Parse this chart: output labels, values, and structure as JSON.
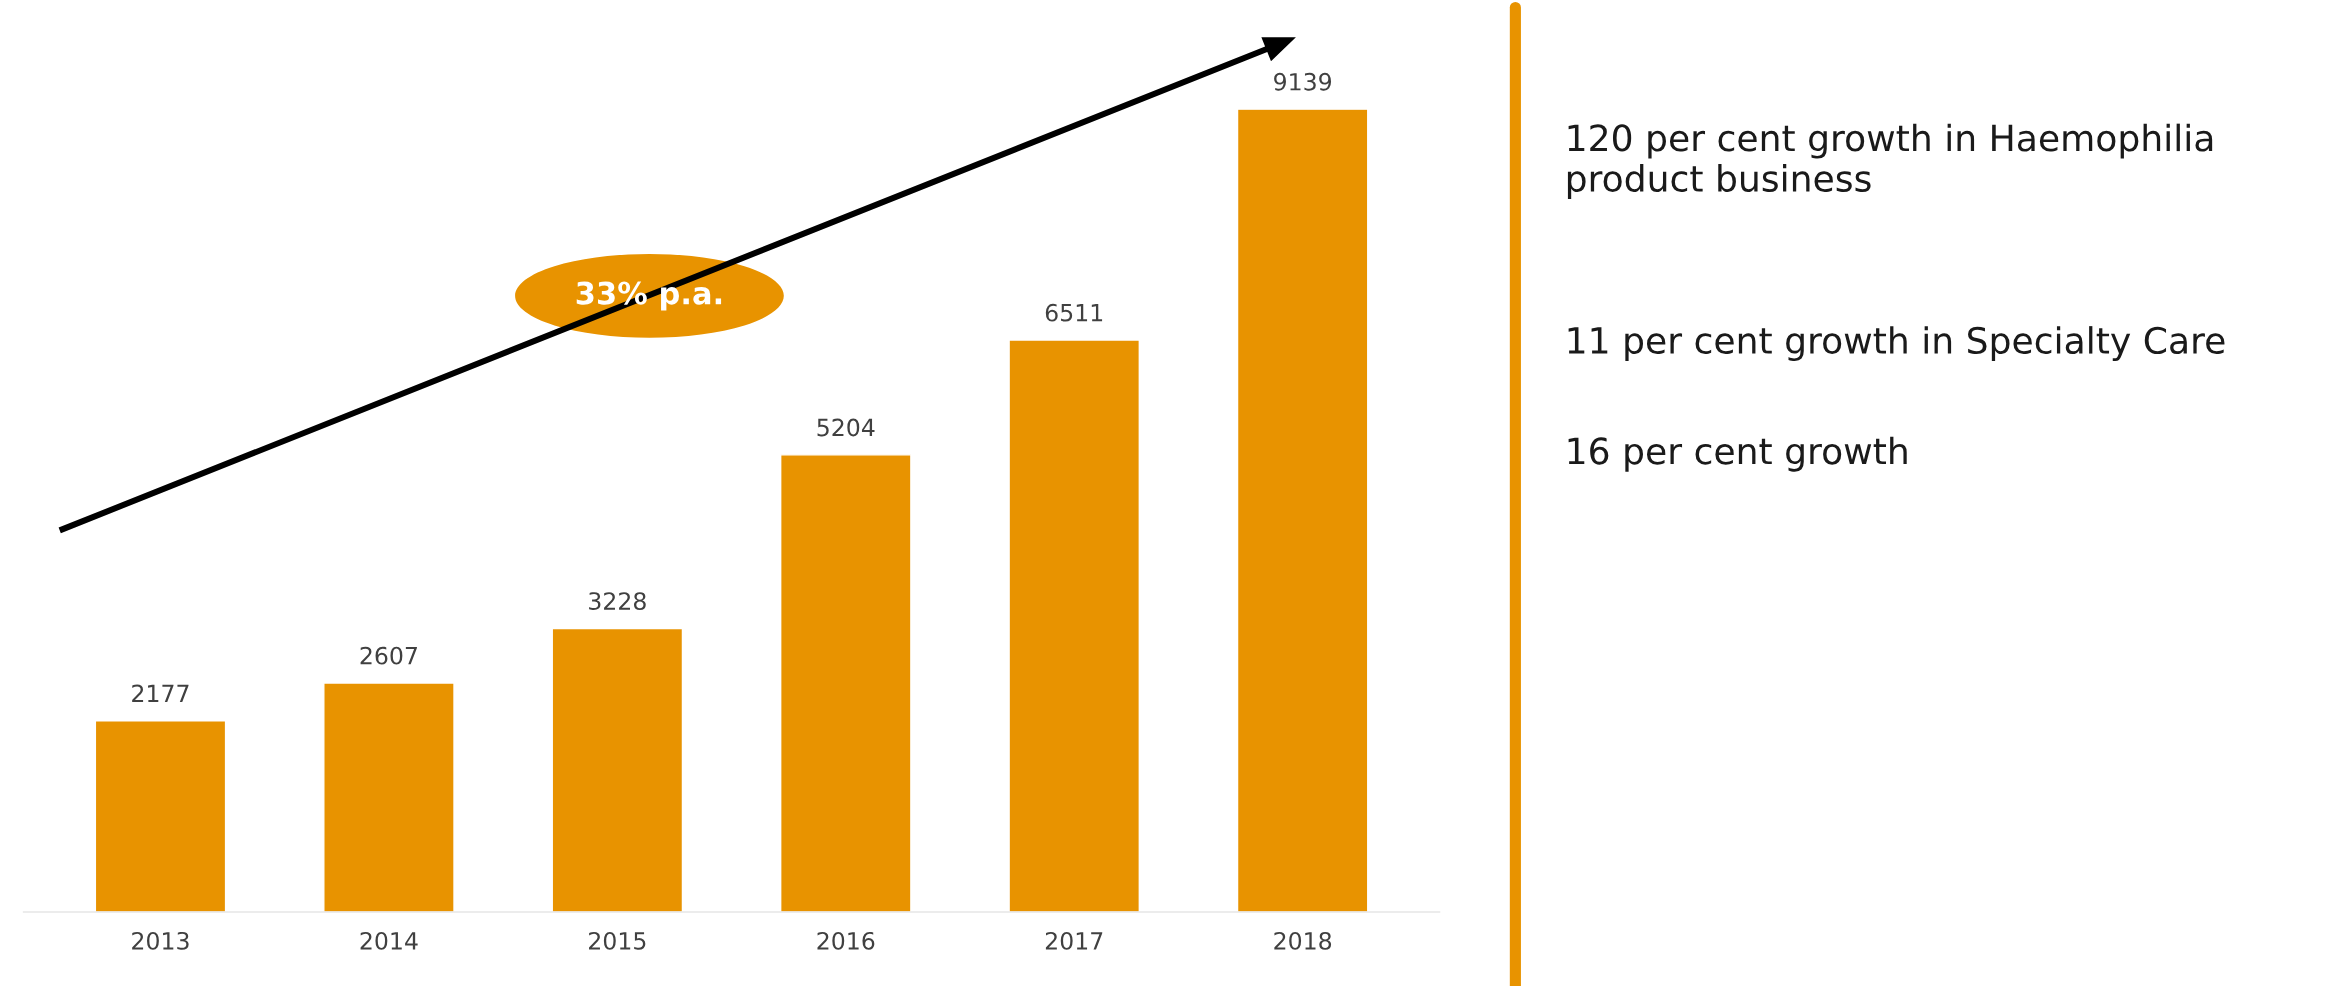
{
  "chart_data": {
    "type": "bar",
    "categories": [
      "2013",
      "2014",
      "2015",
      "2016",
      "2017",
      "2018"
    ],
    "values": [
      2177,
      2607,
      3228,
      5204,
      6511,
      9139
    ],
    "color": "#e89300",
    "data_labels": true,
    "annotations": [
      "33% p.a.",
      "120 per cent growth in Haemophilia product business",
      "11 per cent growth in Specialty Care",
      "16 per cent growth"
    ]
  }
}
